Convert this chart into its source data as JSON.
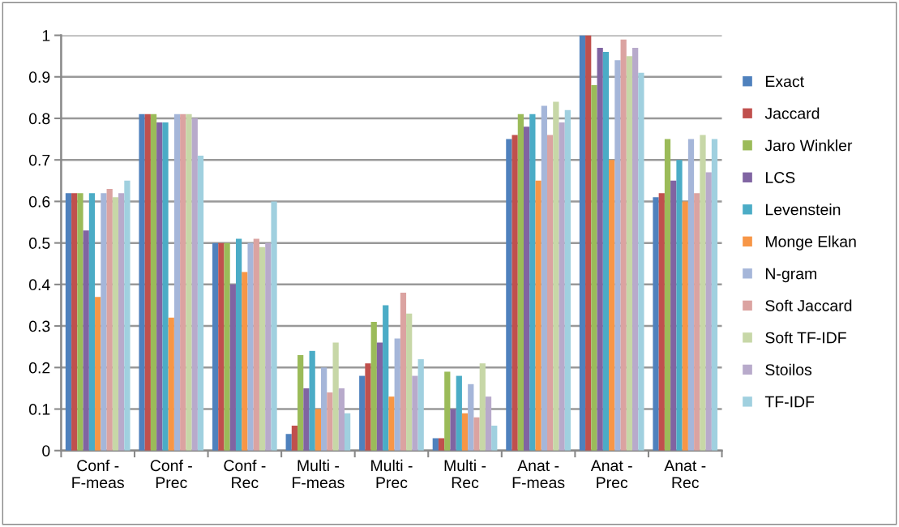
{
  "chart_data": {
    "type": "bar",
    "categories": [
      "Conf -\nF-meas",
      "Conf -\nPrec",
      "Conf -\nRec",
      "Multi -\nF-meas",
      "Multi -\nPrec",
      "Multi -\nRec",
      "Anat -\nF-meas",
      "Anat -\nPrec",
      "Anat -\nRec"
    ],
    "series": [
      {
        "name": "Exact",
        "color": "#4f81bd",
        "values": [
          0.62,
          0.81,
          0.5,
          0.04,
          0.18,
          0.03,
          0.75,
          1.0,
          0.61
        ]
      },
      {
        "name": "Jaccard",
        "color": "#c0504d",
        "values": [
          0.62,
          0.81,
          0.5,
          0.06,
          0.21,
          0.03,
          0.76,
          1.0,
          0.62
        ]
      },
      {
        "name": "Jaro Winkler",
        "color": "#9bbb59",
        "values": [
          0.62,
          0.81,
          0.5,
          0.23,
          0.31,
          0.19,
          0.81,
          0.88,
          0.75
        ]
      },
      {
        "name": "LCS",
        "color": "#8064a2",
        "values": [
          0.53,
          0.79,
          0.4,
          0.15,
          0.26,
          0.1,
          0.78,
          0.97,
          0.65
        ]
      },
      {
        "name": "Levenstein",
        "color": "#4bacc6",
        "values": [
          0.62,
          0.79,
          0.51,
          0.24,
          0.35,
          0.18,
          0.81,
          0.96,
          0.7
        ]
      },
      {
        "name": "Monge Elkan",
        "color": "#f79646",
        "values": [
          0.37,
          0.32,
          0.43,
          0.1,
          0.13,
          0.09,
          0.65,
          0.7,
          0.6
        ]
      },
      {
        "name": "N-gram",
        "color": "#a5b6d9",
        "values": [
          0.62,
          0.81,
          0.5,
          0.2,
          0.27,
          0.16,
          0.83,
          0.94,
          0.75
        ]
      },
      {
        "name": "Soft Jaccard",
        "color": "#dba3a1",
        "values": [
          0.63,
          0.81,
          0.51,
          0.14,
          0.38,
          0.08,
          0.76,
          0.99,
          0.62
        ]
      },
      {
        "name": "Soft TF-IDF",
        "color": "#c7d7a7",
        "values": [
          0.61,
          0.81,
          0.49,
          0.26,
          0.33,
          0.21,
          0.84,
          0.95,
          0.76
        ]
      },
      {
        "name": "Stoilos",
        "color": "#b8aacb",
        "values": [
          0.62,
          0.8,
          0.5,
          0.15,
          0.18,
          0.13,
          0.79,
          0.97,
          0.67
        ]
      },
      {
        "name": "TF-IDF",
        "color": "#a0d0df",
        "values": [
          0.65,
          0.71,
          0.6,
          0.09,
          0.22,
          0.06,
          0.82,
          0.91,
          0.75
        ]
      }
    ],
    "ylim": [
      0,
      1
    ],
    "yticks": [
      0,
      0.1,
      0.2,
      0.3,
      0.4,
      0.5,
      0.6,
      0.7,
      0.8,
      0.9,
      1
    ],
    "grid": "y",
    "legend": "right"
  }
}
